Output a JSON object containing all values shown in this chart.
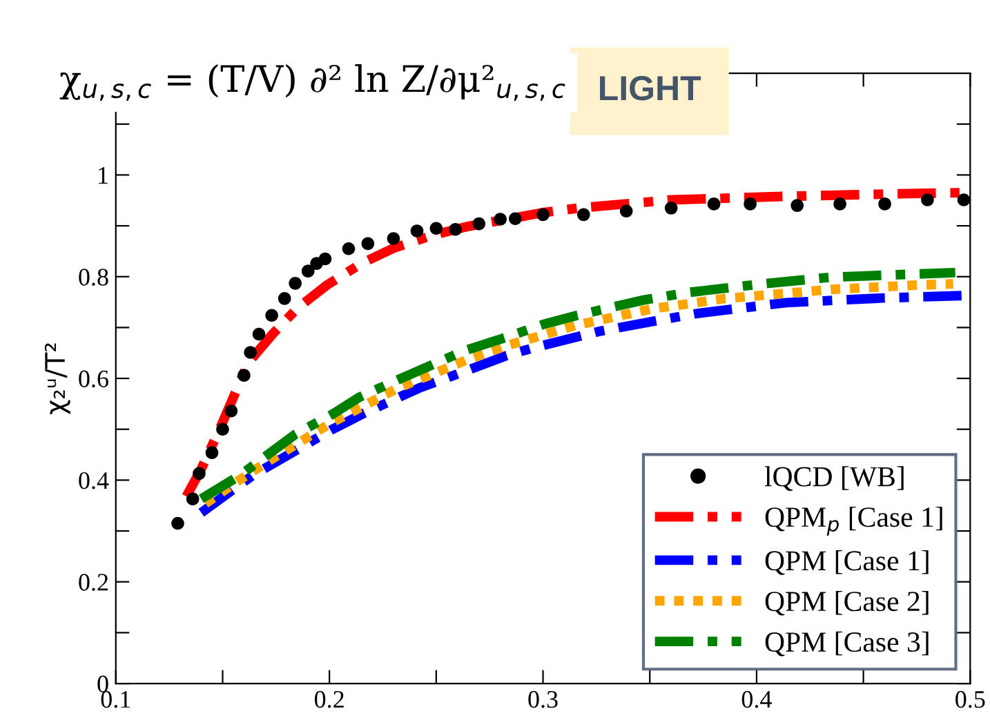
{
  "chart_data": {
    "type": "line",
    "title": "χ$_{u,s,c}$ = (T/V) ∂² ln Z/∂μ²$_{u,s,c}$",
    "annotations": [
      "LIGHT"
    ],
    "ylabel": "χ₂ᵘ/T²",
    "xlim": [
      0.1,
      0.5
    ],
    "ylim": [
      0,
      1.2
    ],
    "xticks": [
      0.1,
      {
        "value": 0.15,
        "label": null
      },
      0.2,
      {
        "value": 0.25,
        "label": null
      },
      0.3,
      {
        "value": 0.35,
        "label": null
      },
      0.4,
      {
        "value": 0.45,
        "label": null
      },
      0.5
    ],
    "yticks": [
      0,
      {
        "value": 0.1,
        "label": null
      },
      0.2,
      {
        "value": 0.3,
        "label": null
      },
      0.4,
      {
        "value": 0.5,
        "label": null
      },
      0.6,
      {
        "value": 0.7,
        "label": null
      },
      0.8,
      {
        "value": 0.9,
        "label": null
      },
      1,
      {
        "value": 1.1,
        "label": null
      }
    ],
    "grid": false,
    "legend": "bottom right",
    "series": [
      {
        "name": "lQCD [WB]",
        "type": "scatter",
        "marker": "circle",
        "color": "#000000",
        "x": [
          0.129,
          0.136,
          0.139,
          0.145,
          0.15,
          0.154,
          0.16,
          0.163,
          0.167,
          0.173,
          0.179,
          0.184,
          0.19,
          0.194,
          0.198,
          0.209,
          0.218,
          0.23,
          0.241,
          0.25,
          0.259,
          0.27,
          0.28,
          0.287,
          0.3,
          0.319,
          0.339,
          0.36,
          0.38,
          0.397,
          0.419,
          0.439,
          0.46,
          0.48,
          0.497
        ],
        "values": [
          0.315,
          0.363,
          0.413,
          0.454,
          0.5,
          0.536,
          0.606,
          0.651,
          0.687,
          0.724,
          0.757,
          0.787,
          0.811,
          0.826,
          0.835,
          0.855,
          0.865,
          0.875,
          0.89,
          0.895,
          0.893,
          0.904,
          0.913,
          0.914,
          0.922,
          0.922,
          0.929,
          0.935,
          0.943,
          0.943,
          0.94,
          0.943,
          0.943,
          0.951,
          0.951
        ]
      },
      {
        "name": "QPM$_{p}$ [Case 1]",
        "line_style": "dashed",
        "color": "#ff0000",
        "x": [
          0.133,
          0.14,
          0.149,
          0.162,
          0.174,
          0.185,
          0.199,
          0.215,
          0.23,
          0.248,
          0.265,
          0.3,
          0.317,
          0.36,
          0.414,
          0.467,
          0.495
        ],
        "values": [
          0.368,
          0.422,
          0.504,
          0.631,
          0.69,
          0.738,
          0.784,
          0.826,
          0.856,
          0.881,
          0.899,
          0.926,
          0.935,
          0.951,
          0.958,
          0.963,
          0.965
        ]
      },
      {
        "name": "QPM [Case 1]",
        "line_style": "dashed",
        "color": "#0000ff",
        "x": [
          0.14,
          0.164,
          0.201,
          0.216,
          0.242,
          0.257,
          0.283,
          0.298,
          0.327,
          0.341,
          0.371,
          0.414,
          0.459,
          0.498
        ],
        "values": [
          0.336,
          0.409,
          0.499,
          0.531,
          0.581,
          0.604,
          0.645,
          0.663,
          0.693,
          0.704,
          0.727,
          0.749,
          0.758,
          0.763
        ]
      },
      {
        "name": "QPM [Case 2]",
        "line_style": "dotted",
        "color": "#ffa500",
        "x": [
          0.142,
          0.156,
          0.171,
          0.201,
          0.232,
          0.248,
          0.264,
          0.282,
          0.315,
          0.35,
          0.385,
          0.435,
          0.473,
          0.492
        ],
        "values": [
          0.354,
          0.395,
          0.436,
          0.513,
          0.581,
          0.608,
          0.636,
          0.663,
          0.704,
          0.736,
          0.757,
          0.775,
          0.783,
          0.786
        ]
      },
      {
        "name": "QPM [Case 3]",
        "line_style": "dashed",
        "color": "#008000",
        "x": [
          0.14,
          0.158,
          0.184,
          0.202,
          0.214,
          0.233,
          0.263,
          0.283,
          0.3,
          0.316,
          0.347,
          0.368,
          0.403,
          0.435,
          0.493
        ],
        "values": [
          0.363,
          0.409,
          0.49,
          0.531,
          0.563,
          0.599,
          0.654,
          0.681,
          0.706,
          0.724,
          0.754,
          0.769,
          0.786,
          0.799,
          0.808
        ]
      }
    ]
  }
}
